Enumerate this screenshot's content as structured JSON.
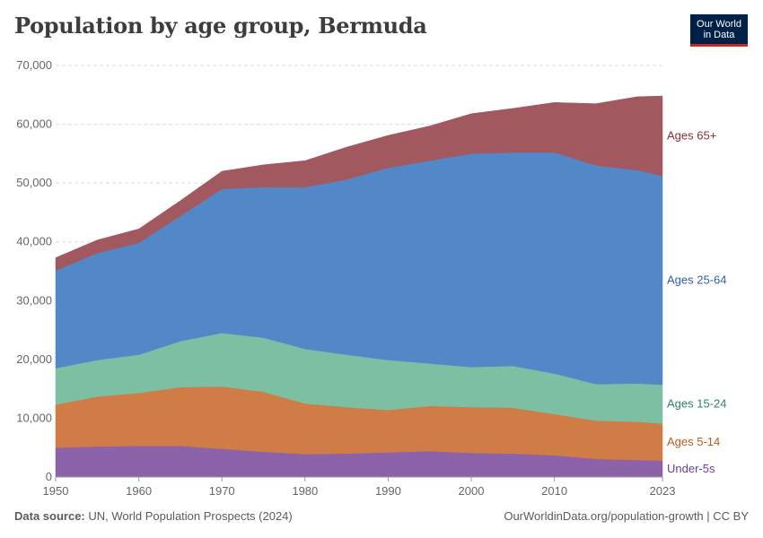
{
  "title": "Population by age group, Bermuda",
  "logo": {
    "line1": "Our World",
    "line2": "in Data"
  },
  "footer": {
    "source_label": "Data source:",
    "source_text": "UN, World Population Prospects (2024)",
    "credit": "OurWorldinData.org/population-growth | CC BY"
  },
  "chart_data": {
    "type": "area",
    "stacked": true,
    "title": "Population by age group, Bermuda",
    "xlabel": "",
    "ylabel": "",
    "xlim": [
      1950,
      2023
    ],
    "ylim": [
      0,
      70000
    ],
    "grid": true,
    "y_ticks": [
      0,
      10000,
      20000,
      30000,
      40000,
      50000,
      60000,
      70000
    ],
    "y_tick_labels": [
      "0",
      "10,000",
      "20,000",
      "30,000",
      "40,000",
      "50,000",
      "60,000",
      "70,000"
    ],
    "x_ticks": [
      1950,
      1960,
      1970,
      1980,
      1990,
      2000,
      2010,
      2023
    ],
    "x_tick_labels": [
      "1950",
      "1960",
      "1970",
      "1980",
      "1990",
      "2000",
      "2010",
      "2023"
    ],
    "x": [
      1950,
      1955,
      1960,
      1965,
      1970,
      1975,
      1980,
      1985,
      1990,
      1995,
      2000,
      2005,
      2010,
      2015,
      2020,
      2023
    ],
    "series": [
      {
        "name": "Under-5s",
        "color": "#8c62a8",
        "label_color": "#6d3e91",
        "values": [
          5000,
          5200,
          5300,
          5300,
          4800,
          4300,
          3900,
          4000,
          4200,
          4400,
          4100,
          4000,
          3700,
          3100,
          2900,
          2800
        ]
      },
      {
        "name": "Ages 5-14",
        "color": "#d07c47",
        "label_color": "#c15a1c",
        "values": [
          7300,
          8500,
          9000,
          10000,
          10600,
          10200,
          8600,
          7900,
          7200,
          7700,
          7800,
          7800,
          7000,
          6500,
          6500,
          6300
        ]
      },
      {
        "name": "Ages 15-24",
        "color": "#7dbfa3",
        "label_color": "#2c8465",
        "values": [
          6200,
          6200,
          6500,
          7800,
          9100,
          9200,
          9300,
          8900,
          8500,
          7200,
          6800,
          7100,
          6900,
          6200,
          6500,
          6600
        ]
      },
      {
        "name": "Ages 25-64",
        "color": "#5388c8",
        "label_color": "#3360a9",
        "values": [
          16600,
          18200,
          19000,
          21300,
          24500,
          25600,
          27500,
          29800,
          32700,
          34500,
          36300,
          36300,
          37600,
          37200,
          36300,
          35500
        ]
      },
      {
        "name": "Ages 65+",
        "color": "#a2585f",
        "label_color": "#883039",
        "values": [
          2200,
          2200,
          2400,
          2600,
          3000,
          3800,
          4500,
          5500,
          5500,
          5900,
          6800,
          7500,
          8500,
          10500,
          12500,
          13600
        ]
      }
    ]
  }
}
